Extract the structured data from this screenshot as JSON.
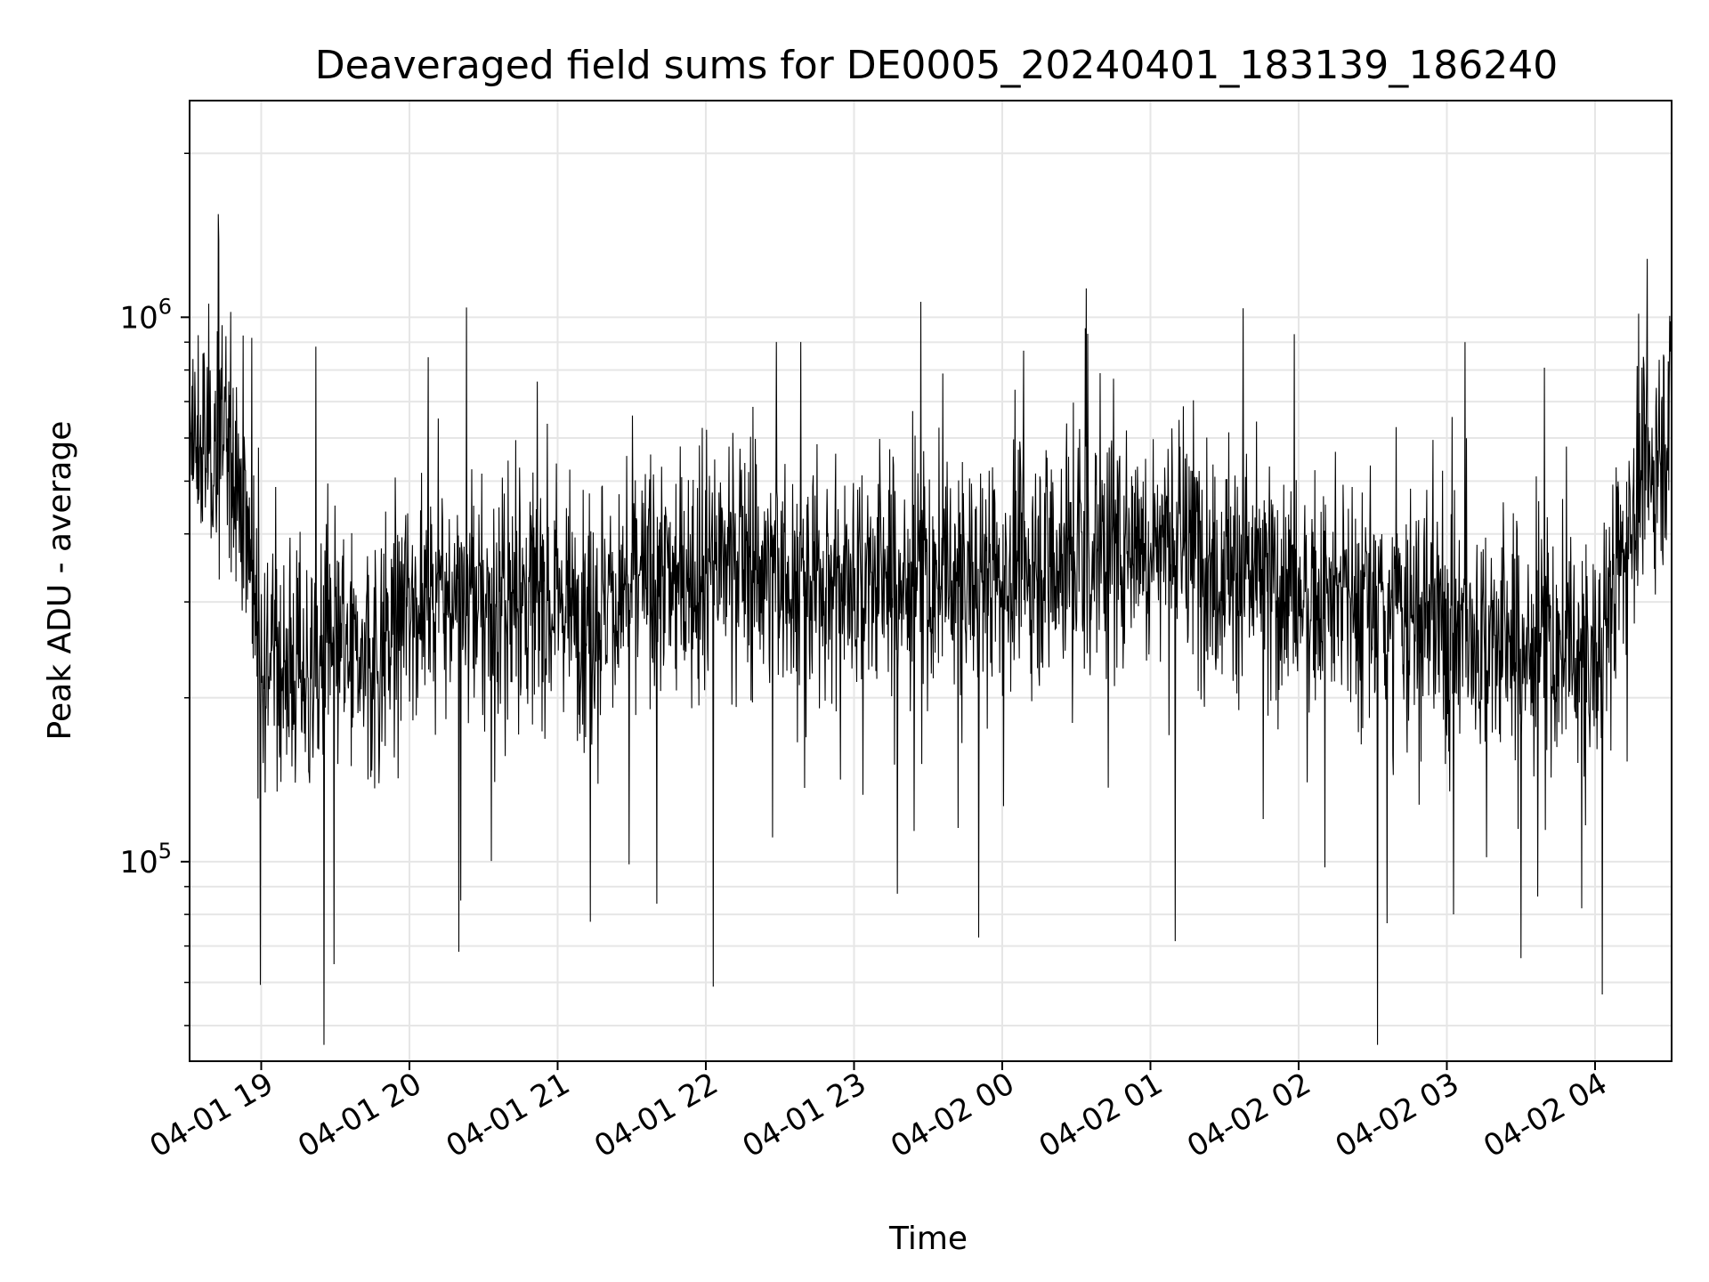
{
  "chart_data": {
    "type": "line",
    "title": "Deaveraged field sums for DE0005_20240401_183139_186240",
    "xlabel": "Time",
    "ylabel": "Peak ADU - average",
    "y_scale": "log",
    "ylim": [
      43000,
      2500000
    ],
    "xlim": [
      "2024-04-01 18:31",
      "2024-04-02 04:31"
    ],
    "grid": true,
    "line_color": "#000000",
    "x_ticks": [
      "04-01 19",
      "04-01 20",
      "04-01 21",
      "04-01 22",
      "04-01 23",
      "04-02 00",
      "04-02 01",
      "04-02 02",
      "04-02 03",
      "04-02 04"
    ],
    "y_ticks": [
      {
        "value": 100000,
        "base": "10",
        "exp": "5"
      },
      {
        "value": 1000000,
        "base": "10",
        "exp": "6"
      }
    ],
    "series": [
      {
        "x": [
          "2024-04-01 18:31",
          "2024-04-01 18:45",
          "2024-04-01 18:50",
          "2024-04-01 19:00",
          "2024-04-01 19:15",
          "2024-04-01 19:30",
          "2024-04-01 19:45",
          "2024-04-01 20:00",
          "2024-04-01 20:15",
          "2024-04-01 20:30",
          "2024-04-01 20:45",
          "2024-04-01 21:00",
          "2024-04-01 21:15",
          "2024-04-01 21:30",
          "2024-04-01 21:45",
          "2024-04-01 22:00",
          "2024-04-01 22:15",
          "2024-04-01 22:30",
          "2024-04-01 22:45",
          "2024-04-01 23:00",
          "2024-04-01 23:15",
          "2024-04-01 23:30",
          "2024-04-01 23:45",
          "2024-04-02 00:00",
          "2024-04-02 00:15",
          "2024-04-02 00:30",
          "2024-04-02 00:45",
          "2024-04-02 01:00",
          "2024-04-02 01:15",
          "2024-04-02 01:30",
          "2024-04-02 01:45",
          "2024-04-02 02:00",
          "2024-04-02 02:15",
          "2024-04-02 02:30",
          "2024-04-02 02:45",
          "2024-04-02 03:00",
          "2024-04-02 03:15",
          "2024-04-02 03:30",
          "2024-04-02 03:45",
          "2024-04-02 04:00",
          "2024-04-02 04:15",
          "2024-04-02 04:31"
        ],
        "y": [
          550000,
          600000,
          560000,
          250000,
          220000,
          240000,
          230000,
          300000,
          320000,
          290000,
          300000,
          310000,
          290000,
          320000,
          330000,
          350000,
          360000,
          340000,
          330000,
          340000,
          330000,
          320000,
          330000,
          340000,
          360000,
          370000,
          380000,
          400000,
          380000,
          350000,
          330000,
          310000,
          300000,
          290000,
          280000,
          270000,
          260000,
          250000,
          240000,
          230000,
          450000,
          650000
        ]
      }
    ]
  }
}
